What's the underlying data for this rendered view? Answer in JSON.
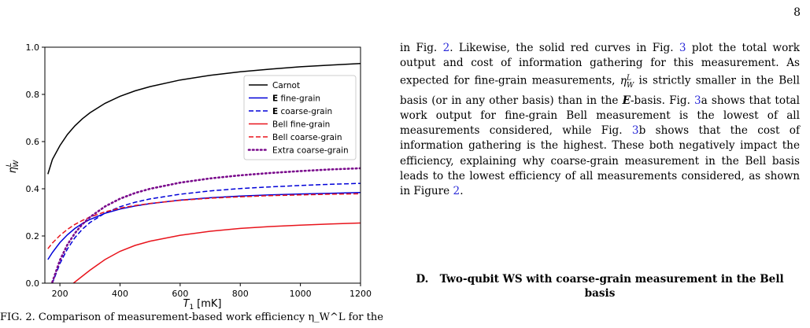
{
  "page_number": "8",
  "caption_fragment": "FIG. 2. Comparison of measurement-based work efficiency η_W^L for the",
  "body_text": {
    "p1_a": "in Fig. ",
    "ref_fig2_a": "2",
    "p1_b": ". Likewise, the solid red curves in Fig. ",
    "ref_fig3_a": "3",
    "p1_c": " plot the total work output and cost of information gathering for this measurement. As expected for fine-grain measurements, ",
    "eta_sym": "η",
    "eta_sup": "L",
    "eta_sub": "W",
    "p1_d": " is strictly smaller in the Bell basis (or in any other basis) than in the ",
    "e_basis": "E",
    "p1_e": "-basis. Fig. ",
    "ref_fig3_b": "3",
    "p1_f": "a shows that total work output for fine-grain Bell measurement is the lowest of all measurements considered, while Fig. ",
    "ref_fig3_c": "3",
    "p1_g": "b shows that the cost of information gathering is the highest. These both negatively impact the efficiency, explaining why coarse-grain measurement in the Bell basis leads to the lowest efficiency of all measurements considered, as shown in Figure ",
    "ref_fig2_b": "2",
    "p1_h": "."
  },
  "section_heading": {
    "label": "D.",
    "title": "Two-qubit WS with coarse-grain measurement in the Bell basis"
  },
  "chart_data": {
    "type": "line",
    "xlabel_main": "T",
    "xlabel_sub": "1",
    "xlabel_unit": "[mK]",
    "ylabel_main": "η",
    "ylabel_sup": "L",
    "ylabel_sub": "W",
    "xlim": [
      150,
      1200
    ],
    "ylim": [
      0.0,
      1.0
    ],
    "xticks": [
      200,
      400,
      600,
      800,
      1000,
      1200
    ],
    "yticks": [
      0.0,
      0.2,
      0.4,
      0.6,
      0.8,
      1.0
    ],
    "xtick_labels": [
      "200",
      "400",
      "600",
      "800",
      "1000",
      "1200"
    ],
    "ytick_labels": [
      "0.0",
      "0.2",
      "0.4",
      "0.6",
      "0.8",
      "1.0"
    ],
    "legend_position": "center-right",
    "x": [
      160,
      175,
      200,
      225,
      250,
      275,
      300,
      350,
      400,
      450,
      500,
      600,
      700,
      800,
      900,
      1000,
      1100,
      1200
    ],
    "series": [
      {
        "name": "Carnot",
        "legend_bold": "",
        "legend_rest": "Carnot",
        "color": "#000000",
        "dash": "solid",
        "values": [
          0.462,
          0.524,
          0.583,
          0.63,
          0.667,
          0.697,
          0.722,
          0.762,
          0.792,
          0.815,
          0.833,
          0.861,
          0.881,
          0.896,
          0.907,
          0.917,
          0.924,
          0.931
        ]
      },
      {
        "name": "E fine-grain",
        "legend_bold": "E",
        "legend_rest": " fine-grain",
        "color": "#0000d8",
        "dash": "solid",
        "values": [
          0.1,
          0.13,
          0.172,
          0.205,
          0.232,
          0.253,
          0.27,
          0.296,
          0.314,
          0.327,
          0.337,
          0.352,
          0.362,
          0.369,
          0.374,
          0.378,
          0.381,
          0.384
        ]
      },
      {
        "name": "E coarse-grain",
        "legend_bold": "E",
        "legend_rest": " coarse-grain",
        "color": "#0000d8",
        "dash": "dashed",
        "values": [
          -0.06,
          0.0,
          0.083,
          0.145,
          0.193,
          0.229,
          0.257,
          0.297,
          0.324,
          0.343,
          0.357,
          0.377,
          0.391,
          0.401,
          0.408,
          0.414,
          0.419,
          0.423
        ]
      },
      {
        "name": "Bell fine-grain",
        "legend_bold": "",
        "legend_rest": "Bell fine-grain",
        "color": "#e8141c",
        "dash": "solid",
        "values": [
          -0.1,
          -0.08,
          -0.048,
          -0.02,
          0.005,
          0.03,
          0.055,
          0.1,
          0.135,
          0.16,
          0.178,
          0.203,
          0.22,
          0.232,
          0.24,
          0.246,
          0.251,
          0.255
        ]
      },
      {
        "name": "Bell coarse-grain",
        "legend_bold": "",
        "legend_rest": "Bell coarse-grain",
        "color": "#e8141c",
        "dash": "dashed",
        "values": [
          0.146,
          0.17,
          0.202,
          0.228,
          0.249,
          0.266,
          0.28,
          0.302,
          0.318,
          0.329,
          0.338,
          0.351,
          0.36,
          0.366,
          0.371,
          0.374,
          0.377,
          0.379
        ]
      },
      {
        "name": "Extra coarse-grain",
        "legend_bold": "",
        "legend_rest": "Extra coarse-grain",
        "color": "#7a0a8c",
        "dash": "dotted",
        "values": [
          -0.06,
          0.005,
          0.097,
          0.163,
          0.212,
          0.25,
          0.28,
          0.325,
          0.358,
          0.382,
          0.4,
          0.426,
          0.444,
          0.457,
          0.467,
          0.475,
          0.482,
          0.487
        ]
      }
    ]
  }
}
